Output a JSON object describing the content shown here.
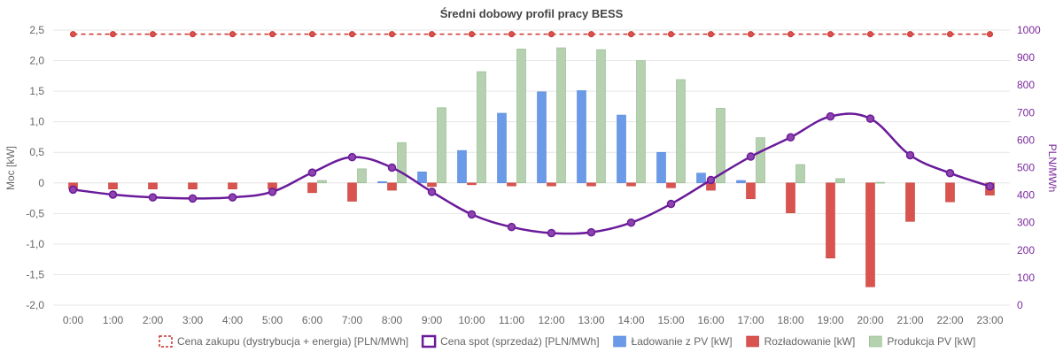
{
  "chart_data": {
    "type": "bar",
    "title": "Średni dobowy profil pracy BESS",
    "ylabel": "Moc [kW]",
    "y2label": "PLN/MWh",
    "ylim": [
      -2.0,
      2.5
    ],
    "y2lim": [
      0,
      1000
    ],
    "yticks": [
      "2,5",
      "2,0",
      "1,5",
      "1,0",
      "0,5",
      "0",
      "-0,5",
      "-1,0",
      "-1,5",
      "-2,0"
    ],
    "y2ticks": [
      "1000",
      "900",
      "800",
      "700",
      "600",
      "500",
      "400",
      "300",
      "200",
      "100",
      "0"
    ],
    "categories": [
      "0:00",
      "1:00",
      "2:00",
      "3:00",
      "4:00",
      "5:00",
      "6:00",
      "7:00",
      "8:00",
      "9:00",
      "10:00",
      "11:00",
      "12:00",
      "13:00",
      "14:00",
      "15:00",
      "16:00",
      "17:00",
      "18:00",
      "19:00",
      "20:00",
      "21:00",
      "22:00",
      "23:00"
    ],
    "series": [
      {
        "name": "Cena zakupu (dystrybucja + energia) [PLN/MWh]",
        "kind": "line-dashed",
        "axis": "right",
        "color": "#c9302c",
        "values": [
          985,
          985,
          985,
          985,
          985,
          985,
          985,
          985,
          985,
          985,
          985,
          985,
          985,
          985,
          985,
          985,
          985,
          985,
          985,
          985,
          985,
          985,
          985,
          985
        ]
      },
      {
        "name": "Cena spot (sprzedaż) [PLN/MWh]",
        "kind": "line",
        "axis": "right",
        "color": "#6a1b9a",
        "values": [
          420,
          402,
          392,
          388,
          392,
          412,
          482,
          538,
          500,
          412,
          330,
          284,
          262,
          265,
          300,
          368,
          455,
          540,
          610,
          686,
          678,
          545,
          480,
          432
        ]
      },
      {
        "name": "Ładowanie z PV [kW]",
        "kind": "bar",
        "axis": "left",
        "color": "#6a9ae8",
        "values": [
          0,
          0,
          0,
          0,
          0,
          0,
          0,
          0,
          0.02,
          0.18,
          0.53,
          1.14,
          1.49,
          1.51,
          1.11,
          0.5,
          0.16,
          0.04,
          0,
          0,
          0,
          0,
          0,
          0
        ]
      },
      {
        "name": "Rozładowanie [kW]",
        "kind": "bar",
        "axis": "left",
        "color": "#d9534f",
        "values": [
          -0.1,
          -0.1,
          -0.1,
          -0.1,
          -0.1,
          -0.1,
          -0.16,
          -0.3,
          -0.12,
          -0.06,
          -0.03,
          -0.05,
          -0.05,
          -0.05,
          -0.05,
          -0.08,
          -0.12,
          -0.26,
          -0.49,
          -1.23,
          -1.7,
          -0.63,
          -0.31,
          -0.2
        ]
      },
      {
        "name": "Produkcja PV [kW]",
        "kind": "bar",
        "axis": "left",
        "color": "#b5d1b0",
        "values": [
          0,
          0,
          0,
          0,
          0,
          0,
          0.04,
          0.23,
          0.66,
          1.23,
          1.82,
          2.19,
          2.21,
          2.18,
          2.0,
          1.69,
          1.22,
          0.74,
          0.3,
          0.07,
          0.01,
          0,
          0,
          0
        ]
      }
    ],
    "legend_position": "bottom"
  }
}
